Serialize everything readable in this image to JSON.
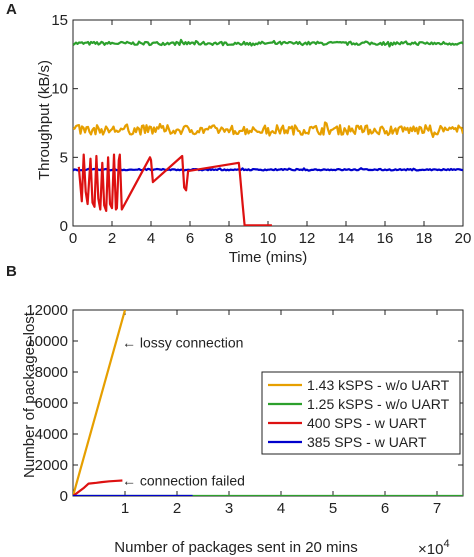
{
  "chart_data": [
    {
      "panel_label": "A",
      "type": "line",
      "xlabel": "Time (mins)",
      "ylabel": "Throughput (kB/s)",
      "xlim": [
        0,
        20
      ],
      "ylim": [
        0,
        15
      ],
      "xticks": [
        "0",
        "2",
        "4",
        "6",
        "8",
        "10",
        "12",
        "14",
        "16",
        "18",
        "20"
      ],
      "yticks": [
        "0",
        "5",
        "10",
        "15"
      ],
      "grid": false,
      "series": [
        {
          "color": "#2ca02c",
          "mean": 13.3,
          "noise": 0.12,
          "x": [
            0,
            20
          ],
          "y": [
            13.3,
            13.3
          ]
        },
        {
          "color": "#e69f00",
          "mean": 7.0,
          "noise": 0.35,
          "x": [
            0,
            20
          ],
          "y": [
            7.0,
            7.0
          ]
        },
        {
          "color": "#0000cc",
          "mean": 4.1,
          "noise": 0.05,
          "x": [
            0,
            20
          ],
          "y": [
            4.1,
            4.1
          ]
        },
        {
          "color": "#dd1111",
          "x": [
            0.3,
            0.45,
            0.55,
            0.65,
            0.75,
            0.9,
            1.0,
            1.1,
            1.2,
            1.3,
            1.4,
            1.5,
            1.6,
            1.7,
            1.8,
            1.9,
            2.0,
            2.1,
            2.2,
            2.25,
            2.35,
            2.4,
            2.5,
            3.95,
            4.0,
            4.1,
            5.6,
            5.7,
            5.8,
            5.9,
            8.5,
            8.55,
            8.7,
            8.8,
            9.5,
            10.2
          ],
          "y": [
            4.3,
            1.8,
            5.2,
            2.5,
            1.6,
            4.9,
            1.7,
            1.4,
            5.1,
            2.0,
            1.2,
            4.6,
            1.5,
            1.1,
            5.0,
            1.6,
            1.3,
            5.2,
            1.2,
            1.3,
            4.8,
            5.2,
            1.2,
            5.0,
            4.8,
            3.2,
            5.1,
            2.8,
            2.6,
            4.0,
            4.6,
            4.0,
            1.6,
            0.05,
            0.05,
            0.05
          ]
        }
      ]
    },
    {
      "panel_label": "B",
      "type": "line",
      "xlabel": "Number of packages sent in 20 mins",
      "ylabel": "Number of packages lost",
      "x_multiplier": "×10",
      "x_multiplier_exp": "4",
      "xlim": [
        0,
        7.5
      ],
      "ylim": [
        0,
        12000
      ],
      "xticks": [
        "1",
        "2",
        "3",
        "4",
        "5",
        "6",
        "7"
      ],
      "yticks": [
        "0",
        "2000",
        "4000",
        "6000",
        "8000",
        "10000",
        "12000"
      ],
      "grid": false,
      "legend_position": "right",
      "series": [
        {
          "name": "1.43 kSPS - w/o UART",
          "color": "#e69f00",
          "x": [
            0,
            1.0
          ],
          "y": [
            0,
            12000
          ]
        },
        {
          "name": "1.25 kSPS - w/o UART",
          "color": "#2ca02c",
          "x": [
            0,
            7.5
          ],
          "y": [
            0,
            0
          ]
        },
        {
          "name": "400 SPS - w UART",
          "color": "#dd1111",
          "x": [
            0,
            0.2,
            0.3,
            0.45,
            0.55,
            0.7,
            0.85,
            0.95
          ],
          "y": [
            0,
            500,
            800,
            850,
            900,
            950,
            980,
            1000
          ]
        },
        {
          "name": "385 SPS - w UART",
          "color": "#0000cc",
          "x": [
            0,
            2.3
          ],
          "y": [
            0,
            0
          ]
        }
      ],
      "annotations": [
        {
          "text": "← lossy connection",
          "x": 1.0,
          "y": 9900
        },
        {
          "text": "← connection failed",
          "x": 1.0,
          "y": 1000
        }
      ]
    }
  ]
}
